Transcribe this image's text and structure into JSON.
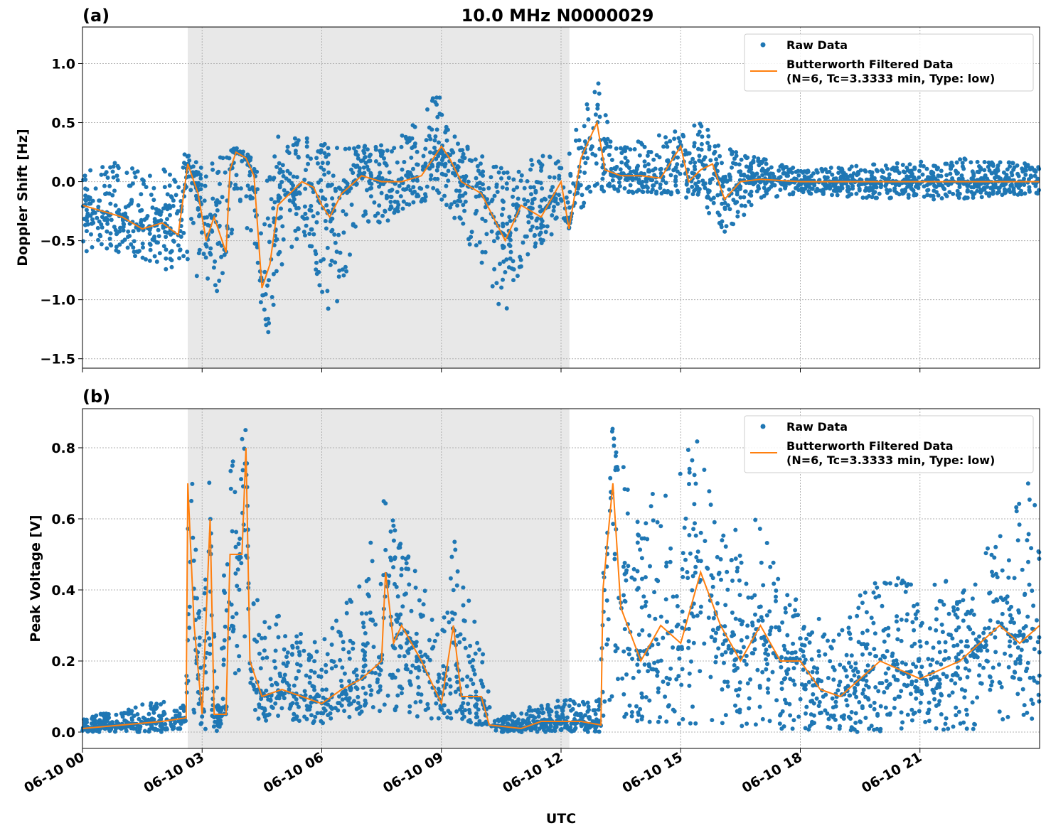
{
  "title": "10.0 MHz N0000029",
  "chart_data": [
    {
      "type": "scatter",
      "panel_label": "(a)",
      "ylabel": "Doppler Shift [Hz]",
      "xlabel": "",
      "xlim": [
        "06-10 00:00",
        "06-11 00:00"
      ],
      "ylim": [
        -1.58,
        1.31
      ],
      "yticks": [
        -1.5,
        -1.0,
        -0.5,
        0.0,
        0.5,
        1.0
      ],
      "ytick_labels": [
        "−1.5",
        "−1.0",
        "−0.5",
        "0.0",
        "0.5",
        "1.0"
      ],
      "grid": true,
      "legend_placement": "top-right",
      "shaded_interval_hours": [
        2.64,
        12.21
      ],
      "series": [
        {
          "name": "Raw Data",
          "color": "#1f77b4",
          "kind": "scatter",
          "envelope": [
            [
              0,
              -0.6,
              0.2
            ],
            [
              1,
              -0.6,
              0.15
            ],
            [
              2,
              -0.75,
              0.1
            ],
            [
              2.6,
              -0.7,
              0.25
            ],
            [
              3.1,
              -0.9,
              0.1
            ],
            [
              3.6,
              -1.0,
              0.3
            ],
            [
              3.8,
              -0.2,
              0.3
            ],
            [
              4.3,
              -0.5,
              0.2
            ],
            [
              4.6,
              -1.45,
              0.0
            ],
            [
              4.9,
              -0.9,
              0.4
            ],
            [
              5.5,
              -0.4,
              0.4
            ],
            [
              6.2,
              -1.2,
              0.3
            ],
            [
              7,
              -0.4,
              0.3
            ],
            [
              8,
              -0.3,
              0.4
            ],
            [
              8.9,
              -0.1,
              0.75
            ],
            [
              9.5,
              -0.4,
              0.35
            ],
            [
              10.6,
              -1.2,
              0.1
            ],
            [
              11.2,
              -0.6,
              0.2
            ],
            [
              12,
              -0.4,
              0.3
            ],
            [
              12.9,
              -0.1,
              0.9
            ],
            [
              13.3,
              -0.1,
              0.3
            ],
            [
              14.5,
              -0.1,
              0.4
            ],
            [
              15.5,
              -0.2,
              0.5
            ],
            [
              16.1,
              -0.45,
              0.3
            ],
            [
              17,
              -0.15,
              0.2
            ],
            [
              18,
              -0.1,
              0.1
            ],
            [
              20,
              -0.15,
              0.15
            ],
            [
              22,
              -0.15,
              0.2
            ],
            [
              24,
              -0.1,
              0.15
            ]
          ]
        },
        {
          "name": "Butterworth Filtered Data\n(N=6, Tc=3.3333 min, Type: low)",
          "color": "#ff7f0e",
          "kind": "line",
          "points": [
            [
              0,
              -0.2
            ],
            [
              0.5,
              -0.25
            ],
            [
              1,
              -0.3
            ],
            [
              1.5,
              -0.4
            ],
            [
              2,
              -0.35
            ],
            [
              2.4,
              -0.45
            ],
            [
              2.64,
              0.15
            ],
            [
              2.9,
              -0.1
            ],
            [
              3.1,
              -0.5
            ],
            [
              3.3,
              -0.3
            ],
            [
              3.6,
              -0.6
            ],
            [
              3.7,
              0.1
            ],
            [
              3.85,
              0.25
            ],
            [
              4.1,
              0.2
            ],
            [
              4.3,
              0.05
            ],
            [
              4.5,
              -0.9
            ],
            [
              4.7,
              -0.7
            ],
            [
              4.9,
              -0.2
            ],
            [
              5.2,
              -0.1
            ],
            [
              5.5,
              0
            ],
            [
              5.8,
              -0.05
            ],
            [
              6.0,
              -0.2
            ],
            [
              6.2,
              -0.3
            ],
            [
              6.5,
              -0.1
            ],
            [
              7,
              0.05
            ],
            [
              7.5,
              0
            ],
            [
              8,
              0
            ],
            [
              8.5,
              0.05
            ],
            [
              9,
              0.3
            ],
            [
              9.2,
              0.2
            ],
            [
              9.5,
              0
            ],
            [
              10,
              -0.1
            ],
            [
              10.3,
              -0.3
            ],
            [
              10.6,
              -0.5
            ],
            [
              11,
              -0.2
            ],
            [
              11.5,
              -0.3
            ],
            [
              12,
              0
            ],
            [
              12.2,
              -0.4
            ],
            [
              12.5,
              0.2
            ],
            [
              12.9,
              0.5
            ],
            [
              13.1,
              0.1
            ],
            [
              13.5,
              0.05
            ],
            [
              14,
              0.05
            ],
            [
              14.5,
              0.03
            ],
            [
              15,
              0.3
            ],
            [
              15.2,
              0
            ],
            [
              15.5,
              0.1
            ],
            [
              15.8,
              0.15
            ],
            [
              16.1,
              -0.15
            ],
            [
              16.5,
              0
            ],
            [
              17,
              0.02
            ],
            [
              18,
              0
            ],
            [
              20,
              0
            ],
            [
              22,
              0
            ],
            [
              24,
              0
            ]
          ]
        }
      ]
    },
    {
      "type": "scatter",
      "panel_label": "(b)",
      "ylabel": "Peak Voltage [V]",
      "xlabel": "UTC",
      "xlim": [
        "06-10 00:00",
        "06-11 00:00"
      ],
      "ylim": [
        -0.046,
        0.91
      ],
      "yticks": [
        0.0,
        0.2,
        0.4,
        0.6,
        0.8
      ],
      "ytick_labels": [
        "0.0",
        "0.2",
        "0.4",
        "0.6",
        "0.8"
      ],
      "xticks_hours": [
        0,
        3,
        6,
        9,
        12,
        15,
        18,
        21
      ],
      "xtick_labels": [
        "06-10 00",
        "06-10 03",
        "06-10 06",
        "06-10 09",
        "06-10 12",
        "06-10 15",
        "06-10 18",
        "06-10 21"
      ],
      "grid": true,
      "legend_placement": "top-right",
      "shaded_interval_hours": [
        2.64,
        12.21
      ],
      "series": [
        {
          "name": "Raw Data",
          "color": "#1f77b4",
          "kind": "scatter",
          "envelope": [
            [
              0,
              0.0,
              0.04
            ],
            [
              2,
              0.0,
              0.09
            ],
            [
              2.6,
              0.01,
              0.08
            ],
            [
              2.7,
              0.05,
              0.85
            ],
            [
              3.0,
              0.0,
              0.2
            ],
            [
              3.2,
              0.0,
              0.85
            ],
            [
              3.4,
              0.0,
              0.1
            ],
            [
              3.7,
              0.1,
              0.83
            ],
            [
              4.1,
              0.2,
              0.86
            ],
            [
              4.3,
              0.03,
              0.4
            ],
            [
              5.2,
              0.03,
              0.3
            ],
            [
              6,
              0.02,
              0.25
            ],
            [
              7,
              0.05,
              0.45
            ],
            [
              7.5,
              0.05,
              0.68
            ],
            [
              8,
              0.05,
              0.55
            ],
            [
              9,
              0.03,
              0.3
            ],
            [
              9.3,
              0.03,
              0.6
            ],
            [
              10,
              0.02,
              0.25
            ],
            [
              10.3,
              0.0,
              0.03
            ],
            [
              11,
              0.0,
              0.07
            ],
            [
              12,
              0.0,
              0.09
            ],
            [
              13,
              0.0,
              0.1
            ],
            [
              13.05,
              0.03,
              0.7
            ],
            [
              13.3,
              0.05,
              0.86
            ],
            [
              14,
              0.02,
              0.6
            ],
            [
              14.7,
              0.02,
              0.77
            ],
            [
              15.5,
              0.02,
              0.85
            ],
            [
              16,
              0.02,
              0.6
            ],
            [
              17,
              0.01,
              0.6
            ],
            [
              18,
              0.0,
              0.35
            ],
            [
              19,
              0.0,
              0.3
            ],
            [
              20,
              0.0,
              0.47
            ],
            [
              21,
              0.0,
              0.4
            ],
            [
              22,
              0.0,
              0.45
            ],
            [
              23,
              0.02,
              0.55
            ],
            [
              23.8,
              0.02,
              0.74
            ],
            [
              24,
              0.05,
              0.55
            ]
          ]
        },
        {
          "name": "Butterworth Filtered Data\n(N=6, Tc=3.3333 min, Type: low)",
          "color": "#ff7f0e",
          "kind": "line",
          "points": [
            [
              0,
              0.01
            ],
            [
              2,
              0.03
            ],
            [
              2.6,
              0.04
            ],
            [
              2.64,
              0.7
            ],
            [
              2.8,
              0.3
            ],
            [
              3.0,
              0.05
            ],
            [
              3.2,
              0.6
            ],
            [
              3.3,
              0.05
            ],
            [
              3.6,
              0.05
            ],
            [
              3.7,
              0.5
            ],
            [
              4.0,
              0.5
            ],
            [
              4.1,
              0.8
            ],
            [
              4.2,
              0.2
            ],
            [
              4.5,
              0.1
            ],
            [
              5,
              0.12
            ],
            [
              5.5,
              0.1
            ],
            [
              6,
              0.08
            ],
            [
              6.5,
              0.12
            ],
            [
              7,
              0.15
            ],
            [
              7.5,
              0.2
            ],
            [
              7.6,
              0.45
            ],
            [
              7.8,
              0.25
            ],
            [
              8,
              0.3
            ],
            [
              8.5,
              0.2
            ],
            [
              9,
              0.08
            ],
            [
              9.3,
              0.3
            ],
            [
              9.5,
              0.1
            ],
            [
              10,
              0.1
            ],
            [
              10.2,
              0.02
            ],
            [
              11,
              0.01
            ],
            [
              11.5,
              0.03
            ],
            [
              12,
              0.03
            ],
            [
              12.5,
              0.03
            ],
            [
              13,
              0.02
            ],
            [
              13.05,
              0.4
            ],
            [
              13.3,
              0.7
            ],
            [
              13.5,
              0.35
            ],
            [
              14,
              0.2
            ],
            [
              14.5,
              0.3
            ],
            [
              15,
              0.25
            ],
            [
              15.5,
              0.45
            ],
            [
              16,
              0.3
            ],
            [
              16.5,
              0.2
            ],
            [
              17,
              0.3
            ],
            [
              17.5,
              0.2
            ],
            [
              18,
              0.2
            ],
            [
              18.5,
              0.12
            ],
            [
              19,
              0.1
            ],
            [
              19.5,
              0.15
            ],
            [
              20,
              0.2
            ],
            [
              21,
              0.15
            ],
            [
              22,
              0.2
            ],
            [
              23,
              0.3
            ],
            [
              23.5,
              0.25
            ],
            [
              24,
              0.3
            ]
          ]
        }
      ]
    }
  ],
  "legend": {
    "raw_label": "Raw Data",
    "filtered_label_1": "Butterworth Filtered Data",
    "filtered_label_2": "(N=6, Tc=3.3333 min, Type: low)"
  }
}
